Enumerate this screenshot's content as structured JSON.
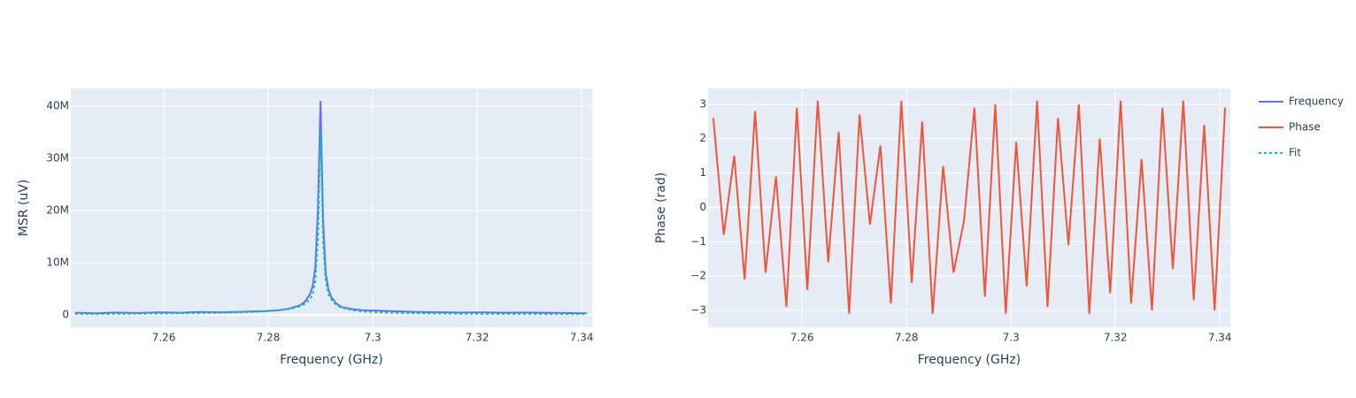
{
  "chart_data": [
    {
      "type": "line",
      "x_label": "Frequency (GHz)",
      "y_label": "MSR (uV)",
      "xlim": [
        7.2422,
        7.342
      ],
      "xticks": [
        7.26,
        7.28,
        7.3,
        7.32,
        7.34
      ],
      "ylim": [
        -2370000,
        43400000
      ],
      "yticks": [
        0,
        {
          "value": 10000000,
          "label": "10M"
        },
        {
          "value": 20000000,
          "label": "20M"
        },
        {
          "value": 30000000,
          "label": "30M"
        },
        {
          "value": 40000000,
          "label": "40M"
        }
      ],
      "grid": true,
      "series": [
        {
          "name": "Frequency",
          "color": "#636efa",
          "dash": "solid",
          "x": [
            7.243,
            7.247,
            7.251,
            7.255,
            7.259,
            7.263,
            7.267,
            7.271,
            7.275,
            7.279,
            7.282,
            7.284,
            7.286,
            7.287,
            7.288,
            7.2885,
            7.289,
            7.2895,
            7.29,
            7.2905,
            7.291,
            7.2915,
            7.292,
            7.293,
            7.294,
            7.296,
            7.298,
            7.301,
            7.305,
            7.309,
            7.313,
            7.317,
            7.321,
            7.325,
            7.329,
            7.333,
            7.337,
            7.341
          ],
          "values": [
            400000,
            300000,
            450000,
            350000,
            500000,
            400000,
            550000,
            500000,
            600000,
            700000,
            900000,
            1200000,
            1800000,
            2500000,
            4000000,
            5500000,
            9000000,
            20000000,
            41000000,
            18000000,
            8000000,
            5000000,
            3500000,
            2200000,
            1500000,
            1100000,
            900000,
            800000,
            650000,
            550000,
            500000,
            450000,
            500000,
            400000,
            450000,
            400000,
            350000,
            300000
          ]
        },
        {
          "name": "Fit",
          "color": "#00cc96",
          "dash": "dot",
          "x": [
            7.243,
            7.247,
            7.251,
            7.255,
            7.259,
            7.263,
            7.267,
            7.271,
            7.275,
            7.279,
            7.282,
            7.284,
            7.286,
            7.287,
            7.288,
            7.2885,
            7.289,
            7.2895,
            7.29,
            7.2905,
            7.291,
            7.2915,
            7.292,
            7.293,
            7.294,
            7.296,
            7.298,
            7.301,
            7.305,
            7.309,
            7.313,
            7.317,
            7.321,
            7.325,
            7.329,
            7.333,
            7.337,
            7.341
          ],
          "values": [
            150000,
            170000,
            190000,
            210000,
            240000,
            280000,
            330000,
            400000,
            500000,
            650000,
            850000,
            1100000,
            1600000,
            2100000,
            3000000,
            4000000,
            6500000,
            14000000,
            35000000,
            14000000,
            6500000,
            4000000,
            3000000,
            1900000,
            1400000,
            900000,
            650000,
            480000,
            350000,
            280000,
            230000,
            200000,
            180000,
            160000,
            150000,
            140000,
            130000,
            120000
          ]
        }
      ]
    },
    {
      "type": "line",
      "x_label": "Frequency (GHz)",
      "y_label": "Phase (rad)",
      "xlim": [
        7.242,
        7.342
      ],
      "xticks": [
        7.26,
        7.28,
        7.3,
        7.32,
        7.34
      ],
      "ylim": [
        -3.49,
        3.46
      ],
      "yticks": [
        {
          "value": -3,
          "label": "−3"
        },
        {
          "value": -2,
          "label": "−2"
        },
        {
          "value": -1,
          "label": "−1"
        },
        0,
        1,
        2,
        3
      ],
      "grid": true,
      "series": [
        {
          "name": "Phase",
          "color": "#ef553b",
          "dash": "solid",
          "x": [
            7.243,
            7.245,
            7.247,
            7.249,
            7.251,
            7.253,
            7.255,
            7.257,
            7.259,
            7.261,
            7.263,
            7.265,
            7.267,
            7.269,
            7.271,
            7.273,
            7.275,
            7.277,
            7.279,
            7.281,
            7.283,
            7.285,
            7.287,
            7.289,
            7.291,
            7.293,
            7.295,
            7.297,
            7.299,
            7.301,
            7.303,
            7.305,
            7.307,
            7.309,
            7.311,
            7.313,
            7.315,
            7.317,
            7.319,
            7.321,
            7.323,
            7.325,
            7.327,
            7.329,
            7.331,
            7.333,
            7.335,
            7.337,
            7.339,
            7.341
          ],
          "values": [
            2.6,
            -0.8,
            1.5,
            -2.1,
            2.8,
            -1.9,
            0.9,
            -2.9,
            2.9,
            -2.4,
            3.1,
            -1.6,
            2.2,
            -3.1,
            2.7,
            -0.5,
            1.8,
            -2.8,
            3.1,
            -2.2,
            2.5,
            -3.1,
            1.2,
            -1.9,
            -0.4,
            2.9,
            -2.6,
            3.0,
            -3.1,
            1.9,
            -2.3,
            3.1,
            -2.9,
            2.6,
            -1.1,
            3.0,
            -3.1,
            2.0,
            -2.5,
            3.1,
            -2.8,
            1.4,
            -3.0,
            2.9,
            -1.8,
            3.1,
            -2.7,
            2.4,
            -3.0,
            2.9
          ]
        }
      ]
    }
  ]
}
